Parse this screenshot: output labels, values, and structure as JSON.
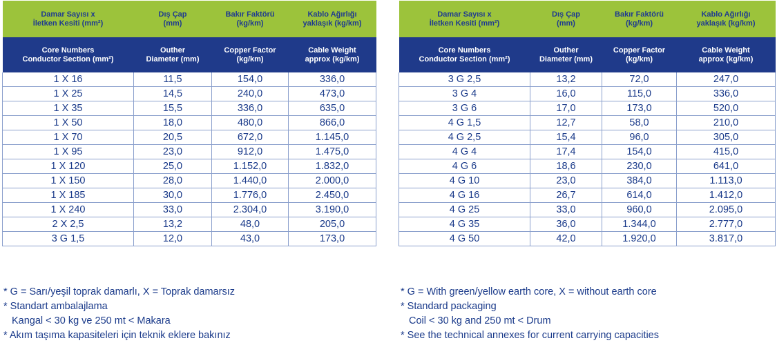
{
  "headers": {
    "tr": [
      "Damar Sayısı x|İletken Kesiti (mm²)",
      "Dış Çap|(mm)",
      "Bakır Faktörü|(kg/km)",
      "Kablo Ağırlığı|yaklaşık (kg/km)"
    ],
    "en": [
      "Core Numbers|Conductor Section (mm²)",
      "Outher|Diameter (mm)",
      "Copper Factor|(kg/km)",
      "Cable Weight|approx (kg/km)"
    ]
  },
  "left_rows": [
    [
      "1 X 16",
      "11,5",
      "154,0",
      "336,0"
    ],
    [
      "1 X 25",
      "14,5",
      "240,0",
      "473,0"
    ],
    [
      "1 X 35",
      "15,5",
      "336,0",
      "635,0"
    ],
    [
      "1 X 50",
      "18,0",
      "480,0",
      "866,0"
    ],
    [
      "1 X 70",
      "20,5",
      "672,0",
      "1.145,0"
    ],
    [
      "1 X 95",
      "23,0",
      "912,0",
      "1.475,0"
    ],
    [
      "1 X 120",
      "25,0",
      "1.152,0",
      "1.832,0"
    ],
    [
      "1 X 150",
      "28,0",
      "1.440,0",
      "2.000,0"
    ],
    [
      "1 X 185",
      "30,0",
      "1.776,0",
      "2.450,0"
    ],
    [
      "1 X 240",
      "33,0",
      "2.304,0",
      "3.190,0"
    ],
    [
      "2 X 2,5",
      "13,2",
      "48,0",
      "205,0"
    ],
    [
      "3 G 1,5",
      "12,0",
      "43,0",
      "173,0"
    ]
  ],
  "right_rows": [
    [
      "3 G 2,5",
      "13,2",
      "72,0",
      "247,0"
    ],
    [
      "3 G 4",
      "16,0",
      "115,0",
      "336,0"
    ],
    [
      "3 G 6",
      "17,0",
      "173,0",
      "520,0"
    ],
    [
      "4 G 1,5",
      "12,7",
      "58,0",
      "210,0"
    ],
    [
      "4 G 2,5",
      "15,4",
      "96,0",
      "305,0"
    ],
    [
      "4 G 4",
      "17,4",
      "154,0",
      "415,0"
    ],
    [
      "4 G 6",
      "18,6",
      "230,0",
      "641,0"
    ],
    [
      "4 G 10",
      "23,0",
      "384,0",
      "1.113,0"
    ],
    [
      "4 G 16",
      "26,7",
      "614,0",
      "1.412,0"
    ],
    [
      "4 G 25",
      "33,0",
      "960,0",
      "2.095,0"
    ],
    [
      "4 G 35",
      "36,0",
      "1.344,0",
      "2.777,0"
    ],
    [
      "4 G 50",
      "42,0",
      "1.920,0",
      "3.817,0"
    ]
  ],
  "notes_tr": [
    "* G = Sarı/yeşil toprak damarlı, X = Toprak damarsız",
    "* Standart ambalajlama",
    "Kangal < 30 kg ve 250 mt < Makara",
    "* Akım taşıma kapasiteleri için teknik eklere bakınız"
  ],
  "notes_en": [
    "* G = With green/yellow earth core, X = without earth core",
    "* Standard packaging",
    "Coil < 30 kg and 250 mt < Drum",
    "* See the technical annexes for current carrying capacities"
  ],
  "colors": {
    "header_green": "#9cc33b",
    "header_blue": "#1f3a8a",
    "text_blue": "#1a3a8a",
    "grid": "#8a9fcc"
  }
}
